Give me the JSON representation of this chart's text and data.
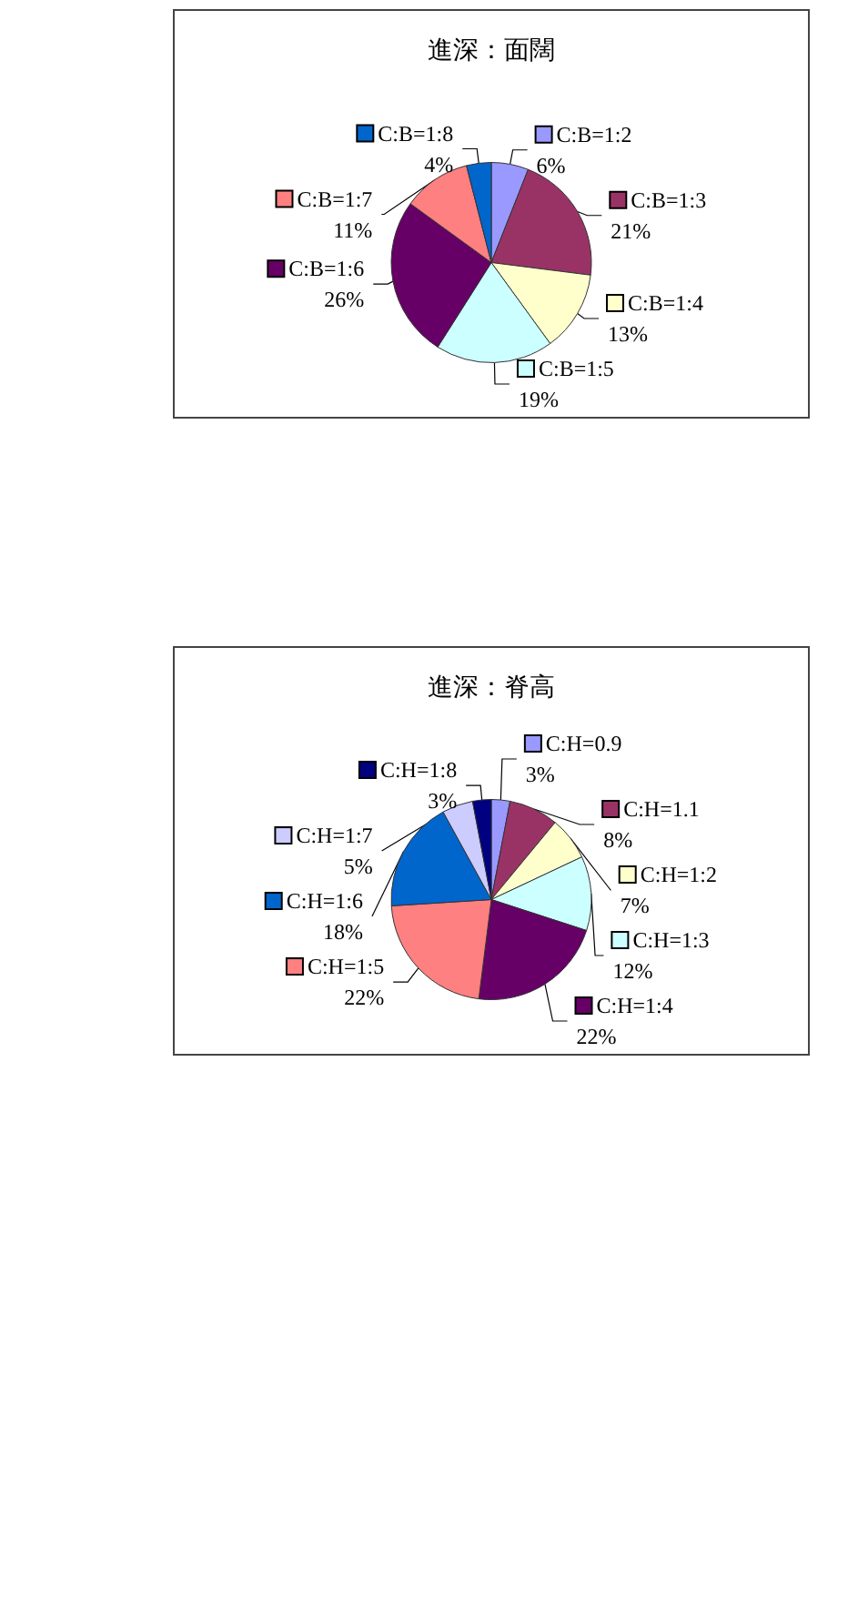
{
  "chart_data": [
    {
      "type": "pie",
      "title": "進深：面闊",
      "legend": true,
      "categories": [
        "C:B=1:2",
        "C:B=1:3",
        "C:B=1:4",
        "C:B=1:5",
        "C:B=1:6",
        "C:B=1:7",
        "C:B=1:8"
      ],
      "values": [
        6,
        21,
        13,
        19,
        26,
        11,
        4
      ],
      "value_labels": [
        "6%",
        "21%",
        "13%",
        "19%",
        "26%",
        "11%",
        "4%"
      ],
      "colors": [
        "#9999ff",
        "#993366",
        "#ffffcc",
        "#ccffff",
        "#660066",
        "#ff8080",
        "#0066cc"
      ]
    },
    {
      "type": "pie",
      "title": "進深：脊高",
      "legend": true,
      "categories": [
        "C:H=0.9",
        "C:H=1.1",
        "C:H=1:2",
        "C:H=1:3",
        "C:H=1:4",
        "C:H=1:5",
        "C:H=1:6",
        "C:H=1:7",
        "C:H=1:8"
      ],
      "values": [
        3,
        8,
        7,
        12,
        22,
        22,
        18,
        5,
        3
      ],
      "value_labels": [
        "3%",
        "8%",
        "7%",
        "12%",
        "22%",
        "22%",
        "18%",
        "5%",
        "3%"
      ],
      "colors": [
        "#9999ff",
        "#993366",
        "#ffffcc",
        "#ccffff",
        "#660066",
        "#ff8080",
        "#0066cc",
        "#ccccff",
        "#000080"
      ]
    }
  ]
}
